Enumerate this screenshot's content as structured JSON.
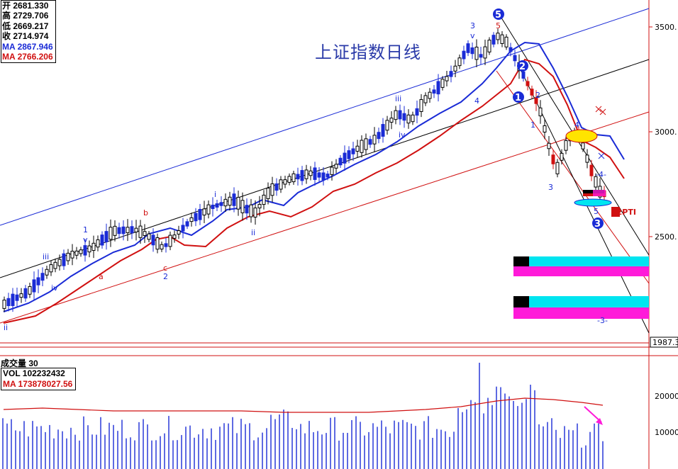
{
  "ohlc": [
    {
      "label": "开",
      "value": "2681.330"
    },
    {
      "label": "高",
      "value": "2729.706"
    },
    {
      "label": "低",
      "value": "2669.217"
    },
    {
      "label": "收",
      "value": "2714.974"
    }
  ],
  "ma_lines": [
    {
      "label": "MA",
      "value": "2867.946",
      "color": "#1a2bd6"
    },
    {
      "label": "MA",
      "value": "2766.206",
      "color": "#d01010"
    }
  ],
  "chart_title": "上证指数日线",
  "volume": {
    "title": "成交量 30",
    "vol_text": "VOL 102232432",
    "ma_text": "MA  173878027.56",
    "axis_labels": [
      "20000",
      "10000"
    ]
  },
  "price_axis": {
    "labels": [
      "3500.",
      "3000.",
      "2500.",
      "1987.3"
    ]
  },
  "chart_data": {
    "type": "candlestick",
    "title": "上证指数日线",
    "y_ticks": [
      3500,
      3000,
      2500
    ],
    "last_marker": 1987.3,
    "wave_labels": [
      {
        "text": "ii",
        "color": "#1a2bd6"
      },
      {
        "text": "iii",
        "color": "#1a2bd6"
      },
      {
        "text": "iv",
        "color": "#1a2bd6"
      },
      {
        "text": "1",
        "color": "#1a2bd6"
      },
      {
        "text": "v",
        "color": "#1a2bd6"
      },
      {
        "text": "a",
        "color": "#d01010"
      },
      {
        "text": "b",
        "color": "#d01010"
      },
      {
        "text": "c",
        "color": "#d01010"
      },
      {
        "text": "2",
        "color": "#1a2bd6"
      },
      {
        "text": "i",
        "color": "#1a2bd6"
      },
      {
        "text": "ii",
        "color": "#1a2bd6"
      },
      {
        "text": "iii",
        "color": "#1a2bd6"
      },
      {
        "text": "iv",
        "color": "#1a2bd6"
      },
      {
        "text": "3",
        "color": "#1a2bd6"
      },
      {
        "text": "v",
        "color": "#1a2bd6"
      },
      {
        "text": "4",
        "color": "#1a2bd6"
      },
      {
        "text": "5",
        "color": "#d01010"
      },
      {
        "text": "2",
        "color": "#1a2bd6"
      },
      {
        "text": "1",
        "color": "#1a2bd6"
      },
      {
        "text": "3",
        "color": "#1a2bd6"
      },
      {
        "text": "4",
        "color": "#1a2bd6"
      },
      {
        "text": "-4-",
        "color": "#1a2bd6"
      },
      {
        "text": "5",
        "color": "#1a2bd6"
      },
      {
        "text": "-3-",
        "color": "#1a2bd6"
      }
    ],
    "circled_labels": [
      "5",
      "2",
      "1",
      "3"
    ],
    "tag": "32PTI",
    "volume_axis": [
      20000,
      10000
    ]
  }
}
